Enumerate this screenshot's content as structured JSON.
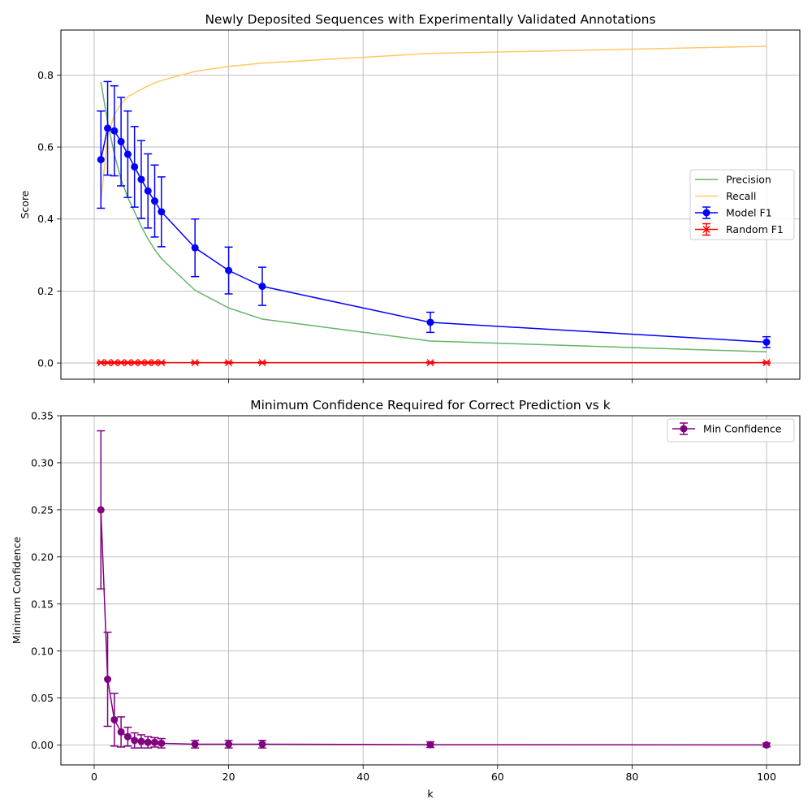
{
  "chart_data": [
    {
      "type": "line",
      "title": "Newly Deposited Sequences with Experimentally Validated Annotations",
      "xlabel": "",
      "ylabel": "Score",
      "xlim": [
        -4.95,
        104.95
      ],
      "ylim": [
        -0.045,
        0.925
      ],
      "xticks": [
        0,
        20,
        40,
        60,
        80,
        100
      ],
      "xtick_labels_visible": false,
      "yticks": [
        0.0,
        0.2,
        0.4,
        0.6,
        0.8
      ],
      "ytick_labels": [
        "0.0",
        "0.2",
        "0.4",
        "0.6",
        "0.8"
      ],
      "grid": true,
      "legend_position": "center-right",
      "series": [
        {
          "name": "Precision",
          "kind": "line",
          "color": "#66b366",
          "x": [
            1,
            2,
            3,
            4,
            5,
            6,
            7,
            8,
            9,
            10,
            15,
            20,
            25,
            50,
            100
          ],
          "values": [
            0.78,
            0.67,
            0.58,
            0.51,
            0.46,
            0.42,
            0.38,
            0.345,
            0.315,
            0.29,
            0.202,
            0.153,
            0.122,
            0.061,
            0.031
          ]
        },
        {
          "name": "Recall",
          "kind": "line",
          "color": "#ffc966",
          "x": [
            1,
            2,
            3,
            4,
            5,
            6,
            7,
            8,
            9,
            10,
            15,
            20,
            25,
            50,
            100
          ],
          "values": [
            0.45,
            0.63,
            0.69,
            0.72,
            0.74,
            0.75,
            0.76,
            0.77,
            0.778,
            0.785,
            0.81,
            0.824,
            0.833,
            0.86,
            0.88
          ]
        },
        {
          "name": "Model F1",
          "kind": "errorbar",
          "marker": "circle",
          "color": "#0000ff",
          "x": [
            1,
            2,
            3,
            4,
            5,
            6,
            7,
            8,
            9,
            10,
            15,
            20,
            25,
            50,
            100
          ],
          "values": [
            0.565,
            0.652,
            0.645,
            0.615,
            0.58,
            0.545,
            0.51,
            0.478,
            0.45,
            0.42,
            0.32,
            0.257,
            0.213,
            0.113,
            0.058
          ],
          "errors": [
            0.135,
            0.13,
            0.125,
            0.123,
            0.12,
            0.112,
            0.108,
            0.103,
            0.1,
            0.097,
            0.08,
            0.065,
            0.053,
            0.028,
            0.015
          ]
        },
        {
          "name": "Random F1",
          "kind": "errorbar",
          "marker": "x",
          "color": "#ff0000",
          "x": [
            1,
            2,
            3,
            4,
            5,
            6,
            7,
            8,
            9,
            10,
            15,
            20,
            25,
            50,
            100
          ],
          "values": [
            0.001,
            0.001,
            0.001,
            0.001,
            0.001,
            0.001,
            0.001,
            0.001,
            0.001,
            0.001,
            0.001,
            0.001,
            0.001,
            0.001,
            0.001
          ],
          "errors": [
            0.002,
            0.002,
            0.002,
            0.002,
            0.002,
            0.002,
            0.002,
            0.002,
            0.002,
            0.002,
            0.002,
            0.002,
            0.002,
            0.002,
            0.002
          ]
        }
      ]
    },
    {
      "type": "line",
      "title": "Minimum Confidence Required for Correct Prediction vs k",
      "xlabel": "k",
      "ylabel": "Minimum Confidence",
      "xlim": [
        -4.95,
        104.95
      ],
      "ylim": [
        -0.021,
        0.35
      ],
      "xticks": [
        0,
        20,
        40,
        60,
        80,
        100
      ],
      "xtick_labels": [
        "0",
        "20",
        "40",
        "60",
        "80",
        "100"
      ],
      "yticks": [
        0.0,
        0.05,
        0.1,
        0.15,
        0.2,
        0.25,
        0.3,
        0.35
      ],
      "ytick_labels": [
        "0.00",
        "0.05",
        "0.10",
        "0.15",
        "0.20",
        "0.25",
        "0.30",
        "0.35"
      ],
      "grid": true,
      "legend_position": "top-right",
      "series": [
        {
          "name": "Min Confidence",
          "kind": "errorbar",
          "marker": "circle",
          "color": "#800080",
          "x": [
            1,
            2,
            3,
            4,
            5,
            6,
            7,
            8,
            9,
            10,
            15,
            20,
            25,
            50,
            100
          ],
          "values": [
            0.25,
            0.07,
            0.027,
            0.014,
            0.009,
            0.005,
            0.004,
            0.003,
            0.003,
            0.002,
            0.001,
            0.001,
            0.001,
            0.0005,
            0.0002
          ],
          "errors": [
            0.084,
            0.05,
            0.028,
            0.016,
            0.01,
            0.008,
            0.007,
            0.006,
            0.005,
            0.005,
            0.004,
            0.004,
            0.004,
            0.003,
            0.002
          ]
        }
      ]
    }
  ]
}
